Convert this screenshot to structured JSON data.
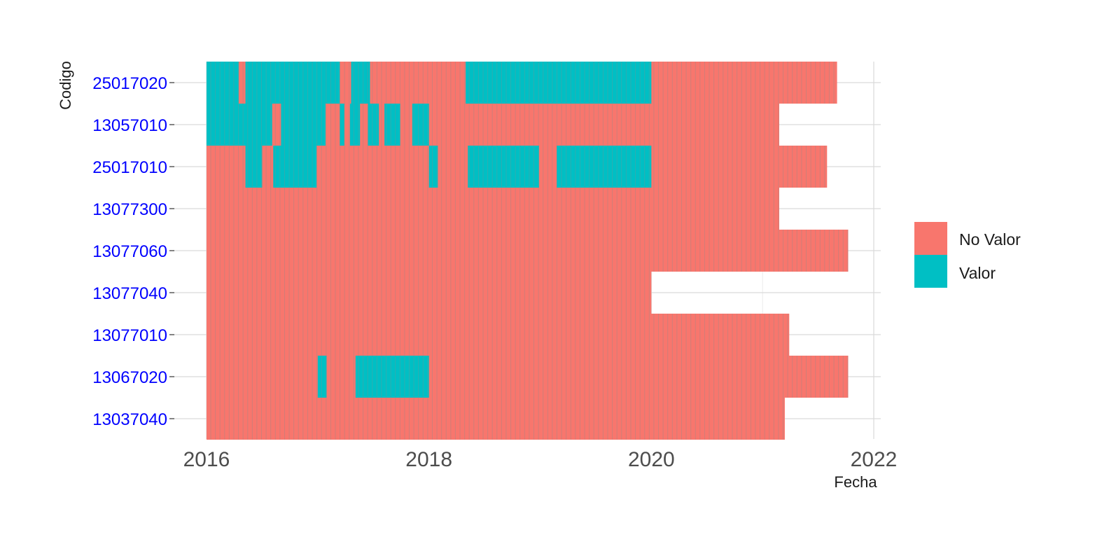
{
  "chart_data": {
    "type": "heatmap",
    "title": "",
    "xlabel": "Fecha",
    "ylabel": "Codigo",
    "x_tick_labels": [
      "2016",
      "2018",
      "2020",
      "2022"
    ],
    "x_tick_values": [
      2016,
      2018,
      2020,
      2022
    ],
    "xlim": [
      2015.8,
      2022.1
    ],
    "y_categories": [
      "25017020",
      "13057010",
      "25017010",
      "13077300",
      "13077060",
      "13077040",
      "13077010",
      "13067020",
      "13037040"
    ],
    "legend": {
      "position": "right",
      "entries": [
        {
          "label": "No Valor",
          "color": "#F8766D"
        },
        {
          "label": "Valor",
          "color": "#00BFC4"
        }
      ]
    },
    "colors": {
      "no_valor": "#F8766D",
      "valor": "#00BFC4",
      "ytick": "#0000ff",
      "grid": "#d9d9d9"
    },
    "series": [
      {
        "codigo": "25017020",
        "start": 2016.0,
        "end": 2021.67,
        "valor_intervals": [
          [
            2016.0,
            2016.29
          ],
          [
            2016.35,
            2017.2
          ],
          [
            2017.3,
            2017.47
          ],
          [
            2018.33,
            2020.0
          ]
        ]
      },
      {
        "codigo": "13057010",
        "start": 2016.0,
        "end": 2021.15,
        "valor_intervals": [
          [
            2016.0,
            2016.59
          ],
          [
            2016.67,
            2017.07
          ],
          [
            2017.2,
            2017.24
          ],
          [
            2017.29,
            2017.38
          ],
          [
            2017.45,
            2017.55
          ],
          [
            2017.6,
            2017.74
          ],
          [
            2017.85,
            2018.0
          ]
        ]
      },
      {
        "codigo": "25017010",
        "start": 2016.0,
        "end": 2021.58,
        "valor_intervals": [
          [
            2016.35,
            2016.5
          ],
          [
            2016.6,
            2016.99
          ],
          [
            2018.0,
            2018.08
          ],
          [
            2018.35,
            2018.99
          ],
          [
            2019.15,
            2020.0
          ]
        ]
      },
      {
        "codigo": "13077300",
        "start": 2016.0,
        "end": 2021.15,
        "valor_intervals": []
      },
      {
        "codigo": "13077060",
        "start": 2016.0,
        "end": 2021.77,
        "valor_intervals": []
      },
      {
        "codigo": "13077040",
        "start": 2016.0,
        "end": 2020.0,
        "valor_intervals": []
      },
      {
        "codigo": "13077010",
        "start": 2016.0,
        "end": 2021.24,
        "valor_intervals": []
      },
      {
        "codigo": "13067020",
        "start": 2016.0,
        "end": 2021.77,
        "valor_intervals": [
          [
            2017.0,
            2017.08
          ],
          [
            2017.34,
            2018.0
          ]
        ]
      },
      {
        "codigo": "13037040",
        "start": 2016.0,
        "end": 2021.2,
        "valor_intervals": []
      }
    ]
  }
}
